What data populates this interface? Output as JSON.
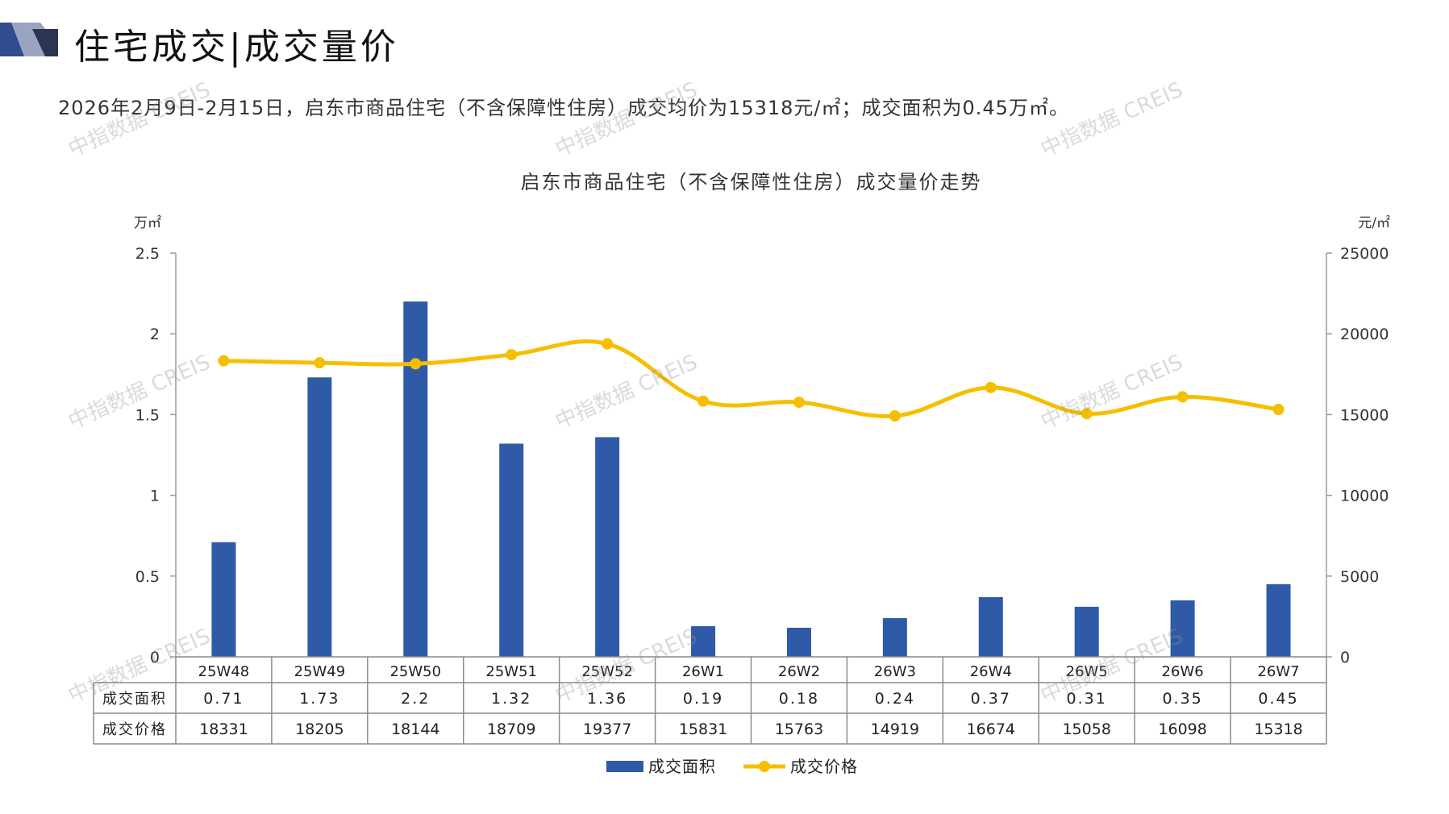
{
  "page": {
    "title": "住宅成交|成交量价",
    "summary": "2026年2月9日-2月15日，启东市商品住宅（不含保障性住房）成交均价为15318元/㎡；成交面积为0.45万㎡。",
    "watermark": "中指数据 CREIS"
  },
  "chart_data": {
    "type": "bar",
    "title": "启东市商品住宅（不含保障性住房）成交量价走势",
    "categories": [
      "25W48",
      "25W49",
      "25W50",
      "25W51",
      "25W52",
      "26W1",
      "26W2",
      "26W3",
      "26W4",
      "26W5",
      "26W6",
      "26W7"
    ],
    "series": [
      {
        "name": "成交面积",
        "type": "bar",
        "axis": "left",
        "color": "#2f5aa8",
        "values": [
          0.71,
          1.73,
          2.2,
          1.32,
          1.36,
          0.19,
          0.18,
          0.24,
          0.37,
          0.31,
          0.35,
          0.45
        ],
        "labels": [
          "0.71",
          "1.73",
          "2.2",
          "1.32",
          "1.36",
          "0.19",
          "0.18",
          "0.24",
          "0.37",
          "0.31",
          "0.35",
          "0.45"
        ]
      },
      {
        "name": "成交价格",
        "type": "line",
        "axis": "right",
        "color": "#f5bf00",
        "values": [
          18331,
          18205,
          18144,
          18709,
          19377,
          15831,
          15763,
          14919,
          16674,
          15058,
          16098,
          15318
        ],
        "labels": [
          "18331",
          "18205",
          "18144",
          "18709",
          "19377",
          "15831",
          "15763",
          "14919",
          "16674",
          "15058",
          "16098",
          "15318"
        ]
      }
    ],
    "y_left": {
      "unit": "万㎡",
      "ylim": [
        0,
        2.5
      ],
      "ticks": [
        "0",
        "0.5",
        "1",
        "1.5",
        "2",
        "2.5"
      ]
    },
    "y_right": {
      "unit": "元/㎡",
      "ylim": [
        0,
        25000
      ],
      "ticks": [
        "0",
        "5000",
        "10000",
        "15000",
        "20000",
        "25000"
      ]
    },
    "data_table": true,
    "legend_position": "bottom",
    "grid": false
  }
}
